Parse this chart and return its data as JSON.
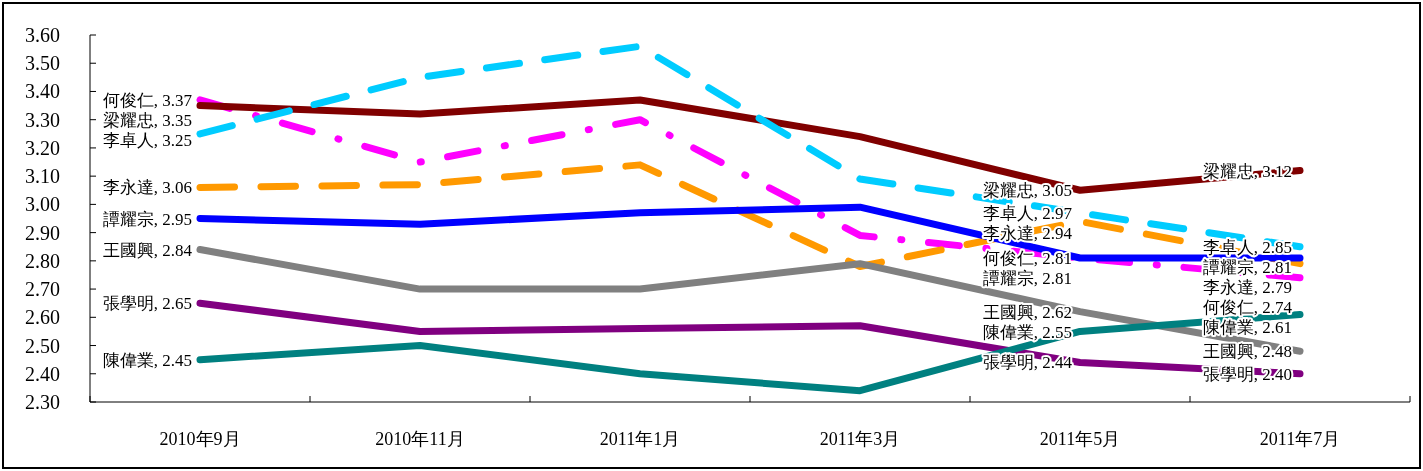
{
  "chart_data": {
    "type": "line",
    "categories": [
      "2010年9月",
      "2010年11月",
      "2011年1月",
      "2011年3月",
      "2011年5月",
      "2011年7月"
    ],
    "ylim": [
      2.3,
      3.6
    ],
    "yticks": [
      {
        "value": 2.3,
        "label": "2.30"
      },
      {
        "value": 2.4,
        "label": "2.40"
      },
      {
        "value": 2.5,
        "label": "2.50"
      },
      {
        "value": 2.6,
        "label": "2.60"
      },
      {
        "value": 2.7,
        "label": "2.70"
      },
      {
        "value": 2.8,
        "label": "2.80"
      },
      {
        "value": 2.9,
        "label": "2.90"
      },
      {
        "value": 3.0,
        "label": "3.00"
      },
      {
        "value": 3.1,
        "label": "3.10"
      },
      {
        "value": 3.2,
        "label": "3.20"
      },
      {
        "value": 3.3,
        "label": "3.30"
      },
      {
        "value": 3.4,
        "label": "3.40"
      },
      {
        "value": 3.5,
        "label": "3.50"
      },
      {
        "value": 3.6,
        "label": "3.60"
      }
    ],
    "series": [
      {
        "name": "何俊仁,",
        "color": "#ff00ff",
        "line_style": "dashdot",
        "values": [
          3.37,
          3.15,
          3.3,
          2.89,
          2.81,
          2.74
        ],
        "value_labels": [
          "3.37",
          null,
          null,
          null,
          "2.81",
          "2.74"
        ]
      },
      {
        "name": "梁耀忠,",
        "color": "#800000",
        "line_style": "solid",
        "values": [
          3.35,
          3.32,
          3.37,
          3.24,
          3.05,
          3.12
        ],
        "value_labels": [
          "3.35",
          null,
          null,
          null,
          "3.05",
          "3.12"
        ]
      },
      {
        "name": "李卓人,",
        "color": "#00ccff",
        "line_style": "dashed",
        "values": [
          3.25,
          3.45,
          3.56,
          3.09,
          2.97,
          2.85
        ],
        "value_labels": [
          "3.25",
          null,
          null,
          null,
          "2.97",
          "2.85"
        ]
      },
      {
        "name": "李永達,",
        "color": "#ff9900",
        "line_style": "dashed",
        "values": [
          3.06,
          3.07,
          3.14,
          2.78,
          2.94,
          2.79
        ],
        "value_labels": [
          "3.06",
          null,
          null,
          null,
          "2.94",
          "2.79"
        ]
      },
      {
        "name": "譚耀宗,",
        "color": "#0000ff",
        "line_style": "solid",
        "values": [
          2.95,
          2.93,
          2.97,
          2.99,
          2.81,
          2.81
        ],
        "value_labels": [
          "2.95",
          null,
          null,
          null,
          "2.81",
          "2.81"
        ]
      },
      {
        "name": "王國興,",
        "color": "#808080",
        "line_style": "solid",
        "values": [
          2.84,
          2.7,
          2.7,
          2.79,
          2.62,
          2.48
        ],
        "value_labels": [
          "2.84",
          null,
          null,
          null,
          "2.62",
          "2.48"
        ]
      },
      {
        "name": "張學明,",
        "color": "#800080",
        "line_style": "solid",
        "values": [
          2.65,
          2.55,
          2.56,
          2.57,
          2.44,
          2.4
        ],
        "value_labels": [
          "2.65",
          null,
          null,
          null,
          "2.44",
          "2.40"
        ]
      },
      {
        "name": "陳偉業,",
        "color": "#008080",
        "line_style": "solid",
        "values": [
          2.45,
          2.5,
          2.4,
          2.34,
          2.55,
          2.61
        ],
        "value_labels": [
          "2.45",
          null,
          null,
          null,
          "2.55",
          "2.61"
        ]
      }
    ]
  }
}
